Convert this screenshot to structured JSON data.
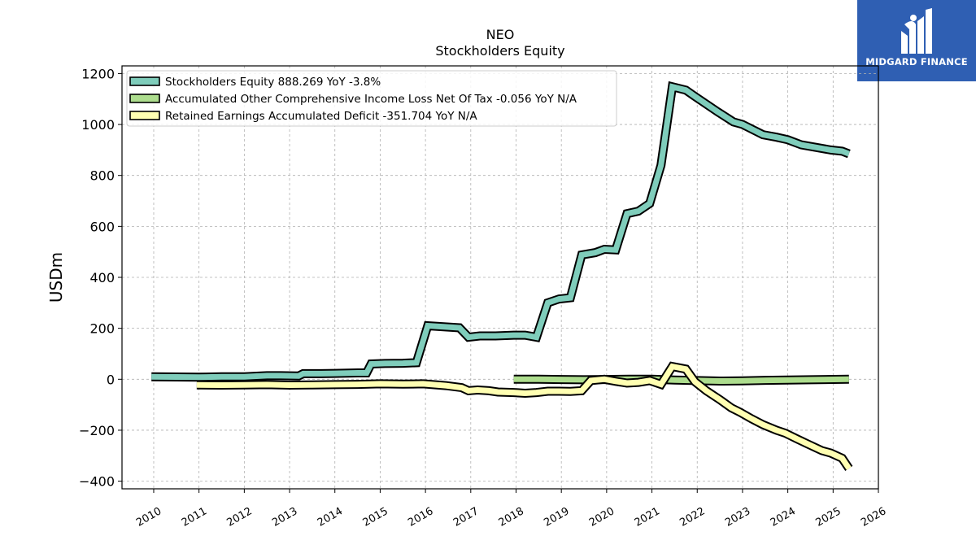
{
  "header": {
    "title": "NEO",
    "subtitle": "Stockholders  Equity"
  },
  "logo": {
    "text": "MIDGARD FINANCE",
    "color": "#2f5fb3"
  },
  "chart_data": {
    "type": "line",
    "ylabel": "USDm",
    "xlabel": "",
    "xlim": [
      2009.3,
      2026.0
    ],
    "ylim": [
      -430,
      1230
    ],
    "yticks": [
      -400,
      -200,
      0,
      200,
      400,
      600,
      800,
      1000,
      1200
    ],
    "ytick_labels": [
      "−400",
      "−200",
      "0",
      "200",
      "400",
      "600",
      "800",
      "1000",
      "1200"
    ],
    "xticks": [
      2010,
      2011,
      2012,
      2013,
      2014,
      2015,
      2016,
      2017,
      2018,
      2019,
      2020,
      2021,
      2022,
      2023,
      2024,
      2025,
      2026
    ],
    "grid": true,
    "legend_position": "top-left",
    "series": [
      {
        "name": "Stockholders Equity",
        "legend_label": "Stockholders Equity  888.269 YoY -3.8%",
        "color": "#7fcdbb",
        "points": [
          [
            2009.95,
            10
          ],
          [
            2010.5,
            9
          ],
          [
            2011.0,
            8
          ],
          [
            2011.5,
            10
          ],
          [
            2012.0,
            10
          ],
          [
            2012.5,
            14
          ],
          [
            2012.8,
            14
          ],
          [
            2013.2,
            13
          ],
          [
            2013.3,
            22
          ],
          [
            2013.7,
            22
          ],
          [
            2014.0,
            23
          ],
          [
            2014.5,
            25
          ],
          [
            2014.7,
            25
          ],
          [
            2014.8,
            60
          ],
          [
            2015.1,
            62
          ],
          [
            2015.5,
            63
          ],
          [
            2015.8,
            65
          ],
          [
            2016.05,
            210
          ],
          [
            2016.4,
            206
          ],
          [
            2016.75,
            202
          ],
          [
            2016.95,
            165
          ],
          [
            2017.2,
            170
          ],
          [
            2017.55,
            170
          ],
          [
            2017.95,
            173
          ],
          [
            2018.2,
            173
          ],
          [
            2018.45,
            165
          ],
          [
            2018.7,
            300
          ],
          [
            2018.95,
            315
          ],
          [
            2019.2,
            320
          ],
          [
            2019.45,
            488
          ],
          [
            2019.75,
            497
          ],
          [
            2019.95,
            510
          ],
          [
            2020.2,
            508
          ],
          [
            2020.45,
            650
          ],
          [
            2020.7,
            660
          ],
          [
            2020.95,
            690
          ],
          [
            2021.2,
            840
          ],
          [
            2021.45,
            1148
          ],
          [
            2021.75,
            1135
          ],
          [
            2021.95,
            1110
          ],
          [
            2022.45,
            1050
          ],
          [
            2022.8,
            1010
          ],
          [
            2023.0,
            1000
          ],
          [
            2023.45,
            960
          ],
          [
            2023.75,
            950
          ],
          [
            2024.0,
            940
          ],
          [
            2024.3,
            920
          ],
          [
            2024.95,
            900
          ],
          [
            2025.2,
            895
          ],
          [
            2025.35,
            885
          ]
        ]
      },
      {
        "name": "Accumulated Other Comprehensive Income Loss Net Of Tax",
        "legend_label": "Accumulated Other Comprehensive Income Loss Net Of Tax  -0.056 YoY N/A",
        "color": "#addd8e",
        "points": [
          [
            2017.95,
            0
          ],
          [
            2018.5,
            0
          ],
          [
            2019.0,
            -1
          ],
          [
            2019.5,
            -2
          ],
          [
            2019.95,
            -1
          ],
          [
            2020.5,
            0
          ],
          [
            2021.0,
            0
          ],
          [
            2021.5,
            -3
          ],
          [
            2022.0,
            -5
          ],
          [
            2022.5,
            -7
          ],
          [
            2023.0,
            -6
          ],
          [
            2023.5,
            -4
          ],
          [
            2024.0,
            -3
          ],
          [
            2024.5,
            -2
          ],
          [
            2025.35,
            0
          ]
        ]
      },
      {
        "name": "Retained Earnings Accumulated Deficit",
        "legend_label": "Retained Earnings Accumulated Deficit  -351.704 YoY N/A",
        "color": "#ffffb2",
        "points": [
          [
            2010.95,
            -22
          ],
          [
            2011.5,
            -23
          ],
          [
            2012.0,
            -22
          ],
          [
            2012.5,
            -21
          ],
          [
            2013.0,
            -23
          ],
          [
            2013.5,
            -22
          ],
          [
            2014.0,
            -21
          ],
          [
            2014.5,
            -20
          ],
          [
            2015.0,
            -18
          ],
          [
            2015.5,
            -19
          ],
          [
            2015.95,
            -18
          ],
          [
            2016.45,
            -25
          ],
          [
            2016.8,
            -33
          ],
          [
            2016.95,
            -45
          ],
          [
            2017.15,
            -42
          ],
          [
            2017.4,
            -45
          ],
          [
            2017.6,
            -50
          ],
          [
            2017.95,
            -52
          ],
          [
            2018.2,
            -55
          ],
          [
            2018.45,
            -52
          ],
          [
            2018.7,
            -47
          ],
          [
            2018.95,
            -47
          ],
          [
            2019.2,
            -48
          ],
          [
            2019.45,
            -45
          ],
          [
            2019.65,
            -5
          ],
          [
            2019.95,
            0
          ],
          [
            2020.2,
            -8
          ],
          [
            2020.45,
            -15
          ],
          [
            2020.7,
            -12
          ],
          [
            2020.95,
            -5
          ],
          [
            2021.2,
            -20
          ],
          [
            2021.45,
            50
          ],
          [
            2021.75,
            40
          ],
          [
            2021.95,
            -10
          ],
          [
            2022.2,
            -45
          ],
          [
            2022.5,
            -80
          ],
          [
            2022.75,
            -112
          ],
          [
            2022.95,
            -130
          ],
          [
            2023.2,
            -155
          ],
          [
            2023.45,
            -178
          ],
          [
            2023.75,
            -200
          ],
          [
            2023.95,
            -212
          ],
          [
            2024.2,
            -234
          ],
          [
            2024.45,
            -255
          ],
          [
            2024.75,
            -280
          ],
          [
            2024.95,
            -290
          ],
          [
            2025.2,
            -310
          ],
          [
            2025.35,
            -350
          ]
        ]
      }
    ]
  }
}
